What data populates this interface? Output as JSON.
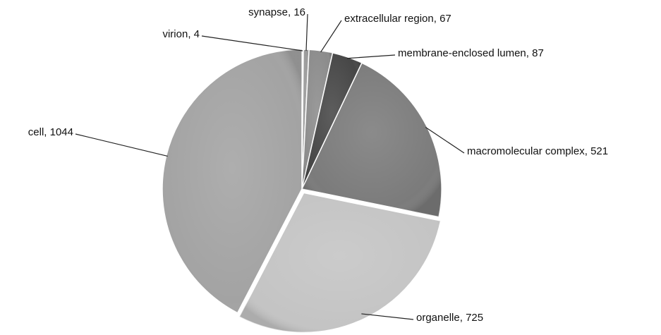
{
  "chart_data": {
    "type": "pie",
    "categories": [
      "virion",
      "synapse",
      "extracellular region",
      "membrane-enclosed lumen",
      "macromolecular complex",
      "organelle",
      "cell"
    ],
    "values": [
      4,
      16,
      67,
      87,
      521,
      725,
      1044
    ],
    "colors": [
      "#d0d0d0",
      "#9a9a9a",
      "#8c8c8c",
      "#474747",
      "#7b7b7b",
      "#c4c4c4",
      "#a3a3a3"
    ]
  }
}
